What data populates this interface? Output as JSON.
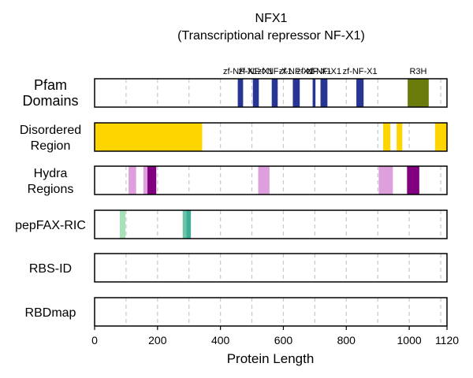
{
  "chart_data": {
    "type": "bar",
    "title": "NFX1",
    "subtitle": "(Transcriptional repressor NF-X1)",
    "xlabel": "Protein Length",
    "xlim": [
      0,
      1120
    ],
    "xticks": [
      0,
      200,
      400,
      600,
      800,
      1000,
      1120
    ],
    "grid": true,
    "rows": [
      {
        "name": "Pfam\nDomains",
        "features": [
          {
            "start": 455,
            "end": 472,
            "color": "#283593",
            "label": "zf-NF-X1"
          },
          {
            "start": 503,
            "end": 522,
            "color": "#283593",
            "label": "zf-NF-X1"
          },
          {
            "start": 563,
            "end": 582,
            "color": "#283593",
            "label": "zf-NF-X1"
          },
          {
            "start": 630,
            "end": 652,
            "color": "#283593",
            "label": "zf-NF-X1"
          },
          {
            "start": 693,
            "end": 702,
            "color": "#283593",
            "label": "zf-NF-X1"
          },
          {
            "start": 718,
            "end": 740,
            "color": "#283593",
            "label": "zf-NF-X1"
          },
          {
            "start": 832,
            "end": 855,
            "color": "#283593",
            "label": "zf-NF-X1"
          },
          {
            "start": 995,
            "end": 1062,
            "color": "#6b7b0b",
            "label": "R3H"
          }
        ]
      },
      {
        "name": "Disordered\nRegion",
        "features": [
          {
            "start": 0,
            "end": 342,
            "color": "#ffd500"
          },
          {
            "start": 917,
            "end": 940,
            "color": "#ffd500"
          },
          {
            "start": 960,
            "end": 978,
            "color": "#ffd500"
          },
          {
            "start": 1082,
            "end": 1120,
            "color": "#ffd500"
          }
        ]
      },
      {
        "name": "Hydra\nRegions",
        "features": [
          {
            "start": 108,
            "end": 132,
            "color": "#dda0dd"
          },
          {
            "start": 155,
            "end": 168,
            "color": "#dda0dd"
          },
          {
            "start": 168,
            "end": 196,
            "color": "#800080"
          },
          {
            "start": 520,
            "end": 556,
            "color": "#dda0dd"
          },
          {
            "start": 903,
            "end": 948,
            "color": "#dda0dd"
          },
          {
            "start": 993,
            "end": 1032,
            "color": "#800080"
          }
        ]
      },
      {
        "name": "pepFAX-RIC",
        "features": [
          {
            "start": 80,
            "end": 98,
            "color": "#a8e0b8"
          },
          {
            "start": 280,
            "end": 292,
            "color": "#6cc4a8"
          },
          {
            "start": 292,
            "end": 306,
            "color": "#3fae96"
          }
        ]
      },
      {
        "name": "RBS-ID",
        "features": []
      },
      {
        "name": "RBDmap",
        "features": []
      }
    ]
  },
  "colors": {
    "grid": "#c8c8c8",
    "frame": "#000000"
  }
}
